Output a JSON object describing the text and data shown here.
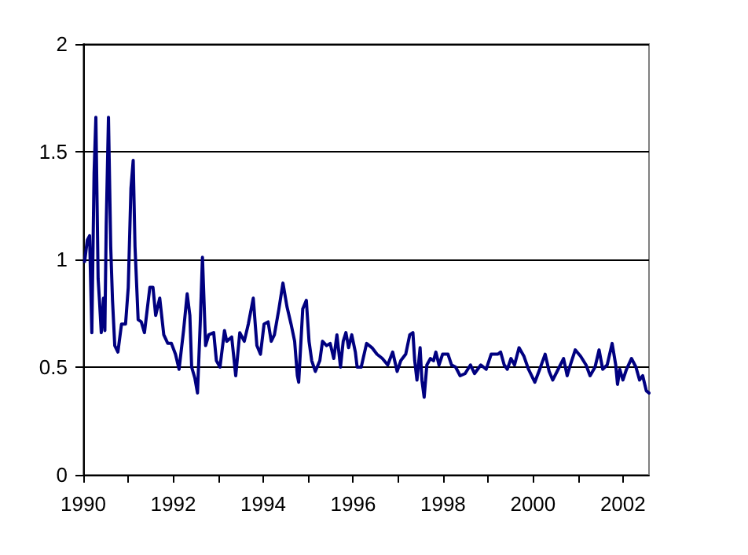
{
  "chart_data": {
    "type": "line",
    "xlim": [
      1990,
      2002.58
    ],
    "ylim": [
      0,
      2
    ],
    "xticks": [
      1990,
      {
        "value": 1991,
        "label": null
      },
      1992,
      {
        "value": 1993,
        "label": null
      },
      1994,
      {
        "value": 1995,
        "label": null
      },
      1996,
      {
        "value": 1997,
        "label": null
      },
      1998,
      {
        "value": 1999,
        "label": null
      },
      2000,
      {
        "value": 2001,
        "label": null
      },
      2002
    ],
    "yticks": [
      0,
      0.5,
      1,
      1.5,
      2
    ],
    "grid": "y",
    "marker": "none",
    "line_style": "solid",
    "series": [
      {
        "color": "#000080",
        "x": [
          1990.03,
          1990.09,
          1990.14,
          1990.19,
          1990.24,
          1990.28,
          1990.33,
          1990.36,
          1990.4,
          1990.45,
          1990.48,
          1990.51,
          1990.56,
          1990.61,
          1990.65,
          1990.7,
          1990.77,
          1990.85,
          1990.94,
          1991.0,
          1991.06,
          1991.11,
          1991.15,
          1991.22,
          1991.29,
          1991.36,
          1991.48,
          1991.55,
          1991.61,
          1991.7,
          1991.79,
          1991.88,
          1991.96,
          1992.05,
          1992.13,
          1992.23,
          1992.31,
          1992.37,
          1992.41,
          1992.48,
          1992.54,
          1992.6,
          1992.65,
          1992.72,
          1992.79,
          1992.9,
          1992.96,
          1993.04,
          1993.14,
          1993.19,
          1993.3,
          1993.39,
          1993.48,
          1993.58,
          1993.67,
          1993.78,
          1993.86,
          1993.94,
          1994.02,
          1994.11,
          1994.18,
          1994.25,
          1994.35,
          1994.44,
          1994.53,
          1994.62,
          1994.7,
          1994.76,
          1994.79,
          1994.88,
          1994.96,
          1995.02,
          1995.08,
          1995.16,
          1995.26,
          1995.32,
          1995.41,
          1995.49,
          1995.57,
          1995.64,
          1995.72,
          1995.78,
          1995.84,
          1995.9,
          1995.97,
          1996.05,
          1996.09,
          1996.18,
          1996.3,
          1996.42,
          1996.53,
          1996.65,
          1996.77,
          1996.88,
          1996.98,
          1997.06,
          1997.17,
          1997.26,
          1997.33,
          1997.37,
          1997.42,
          1997.49,
          1997.53,
          1997.58,
          1997.64,
          1997.72,
          1997.79,
          1997.84,
          1997.91,
          1997.99,
          1998.11,
          1998.19,
          1998.28,
          1998.38,
          1998.49,
          1998.61,
          1998.7,
          1998.84,
          1998.96,
          1999.07,
          1999.22,
          1999.28,
          1999.36,
          1999.43,
          1999.51,
          1999.59,
          1999.69,
          1999.8,
          1999.9,
          2000.04,
          2000.15,
          2000.27,
          2000.36,
          2000.44,
          2000.56,
          2000.68,
          2000.76,
          2000.83,
          2000.94,
          2001.06,
          2001.18,
          2001.27,
          2001.38,
          2001.47,
          2001.55,
          2001.65,
          2001.76,
          2001.84,
          2001.88,
          2001.93,
          2002.0,
          2002.08,
          2002.19,
          2002.29,
          2002.37,
          2002.44,
          2002.52,
          2002.58
        ],
        "values": [
          0.99,
          1.09,
          1.11,
          0.66,
          1.4,
          1.66,
          0.91,
          0.81,
          0.66,
          0.82,
          0.67,
          1.16,
          1.66,
          1.06,
          0.81,
          0.6,
          0.57,
          0.7,
          0.7,
          0.87,
          1.33,
          1.46,
          1.06,
          0.72,
          0.71,
          0.66,
          0.87,
          0.87,
          0.74,
          0.82,
          0.65,
          0.61,
          0.61,
          0.56,
          0.49,
          0.67,
          0.84,
          0.74,
          0.5,
          0.45,
          0.38,
          0.7,
          1.01,
          0.6,
          0.65,
          0.66,
          0.53,
          0.5,
          0.67,
          0.62,
          0.64,
          0.46,
          0.66,
          0.62,
          0.7,
          0.82,
          0.6,
          0.56,
          0.7,
          0.71,
          0.62,
          0.65,
          0.77,
          0.89,
          0.78,
          0.7,
          0.62,
          0.46,
          0.43,
          0.77,
          0.81,
          0.62,
          0.53,
          0.48,
          0.53,
          0.62,
          0.6,
          0.61,
          0.54,
          0.65,
          0.5,
          0.62,
          0.66,
          0.59,
          0.65,
          0.57,
          0.5,
          0.5,
          0.61,
          0.59,
          0.56,
          0.54,
          0.51,
          0.57,
          0.48,
          0.53,
          0.56,
          0.65,
          0.66,
          0.53,
          0.44,
          0.59,
          0.44,
          0.36,
          0.51,
          0.54,
          0.53,
          0.57,
          0.51,
          0.56,
          0.56,
          0.51,
          0.5,
          0.46,
          0.47,
          0.51,
          0.47,
          0.51,
          0.49,
          0.56,
          0.56,
          0.57,
          0.51,
          0.49,
          0.54,
          0.51,
          0.59,
          0.55,
          0.49,
          0.43,
          0.49,
          0.56,
          0.48,
          0.44,
          0.49,
          0.54,
          0.46,
          0.51,
          0.58,
          0.55,
          0.51,
          0.46,
          0.5,
          0.58,
          0.49,
          0.51,
          0.61,
          0.51,
          0.42,
          0.49,
          0.44,
          0.49,
          0.54,
          0.5,
          0.44,
          0.46,
          0.39,
          0.38
        ]
      }
    ]
  }
}
